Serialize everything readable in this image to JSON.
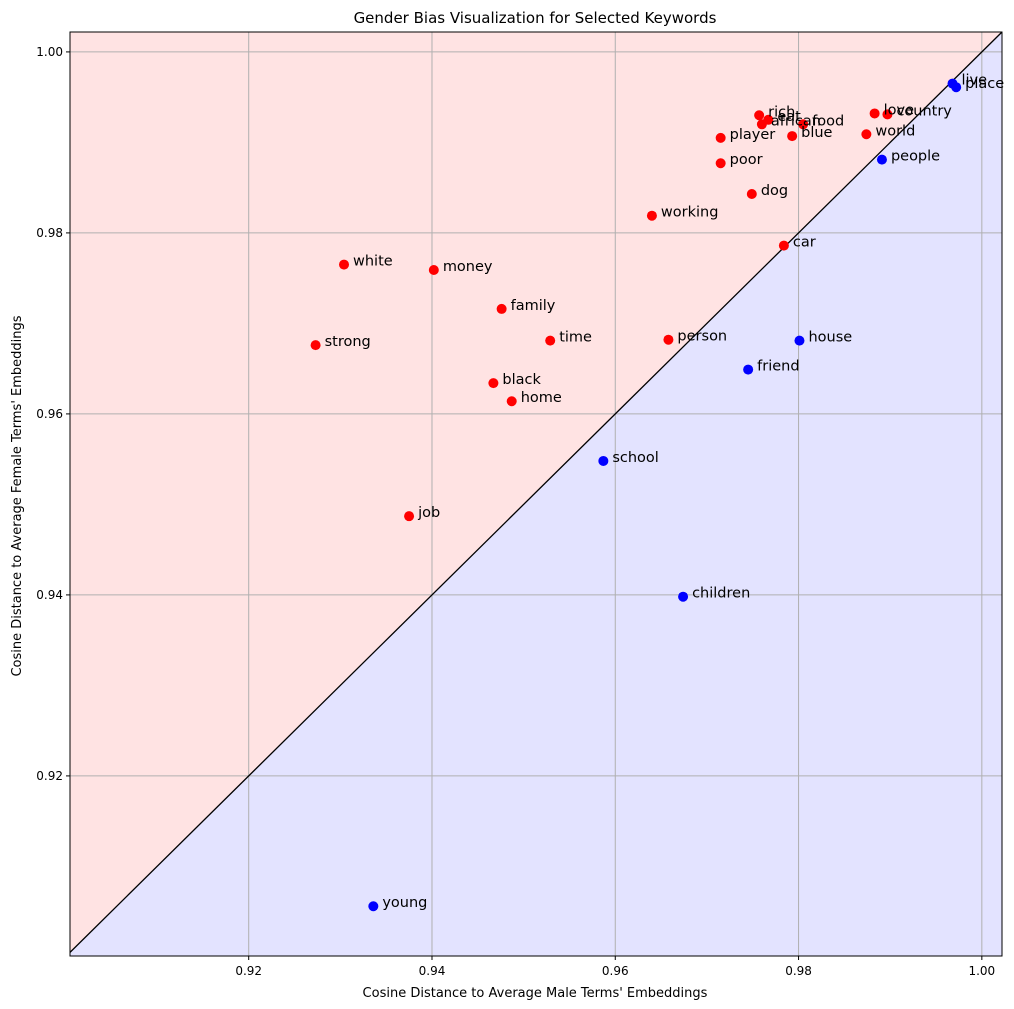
{
  "chart_data": {
    "type": "scatter",
    "title": "Gender Bias Visualization for Selected Keywords",
    "xlabel": "Cosine Distance to Average Male Terms' Embeddings",
    "ylabel": "Cosine Distance to Average Female Terms' Embeddings",
    "xlim": [
      0.9005,
      1.0022
    ],
    "ylim": [
      0.9001,
      1.0022
    ],
    "xticks": [
      0.92,
      0.94,
      0.96,
      0.98,
      1.0
    ],
    "yticks": [
      0.92,
      0.94,
      0.96,
      0.98,
      1.0
    ],
    "tick_labels": [
      "0.92",
      "0.94",
      "0.96",
      "0.98",
      "1.00"
    ],
    "grid": true,
    "diagonal": true,
    "colors": {
      "female_bias_marker": "#ff0000",
      "male_bias_marker": "#0000ff",
      "upper_region_fill": "#ffe3e3",
      "lower_region_fill": "#e3e3ff",
      "grid": "#b0b0b0"
    },
    "points": [
      {
        "label": "rich",
        "x": 0.9757,
        "y": 0.993,
        "color": "red"
      },
      {
        "label": "eat",
        "x": 0.9767,
        "y": 0.9925,
        "color": "red"
      },
      {
        "label": "african",
        "x": 0.976,
        "y": 0.992,
        "color": "red"
      },
      {
        "label": "food",
        "x": 0.9805,
        "y": 0.992,
        "color": "red"
      },
      {
        "label": "blue",
        "x": 0.9793,
        "y": 0.9907,
        "color": "red"
      },
      {
        "label": "player",
        "x": 0.9715,
        "y": 0.9905,
        "color": "red"
      },
      {
        "label": "poor",
        "x": 0.9715,
        "y": 0.9877,
        "color": "red"
      },
      {
        "label": "dog",
        "x": 0.9749,
        "y": 0.9843,
        "color": "red"
      },
      {
        "label": "working",
        "x": 0.964,
        "y": 0.9819,
        "color": "red"
      },
      {
        "label": "car",
        "x": 0.9784,
        "y": 0.9786,
        "color": "red"
      },
      {
        "label": "love",
        "x": 0.9883,
        "y": 0.9932,
        "color": "red"
      },
      {
        "label": "country",
        "x": 0.9897,
        "y": 0.9931,
        "color": "red"
      },
      {
        "label": "world",
        "x": 0.9874,
        "y": 0.9909,
        "color": "red"
      },
      {
        "label": "white",
        "x": 0.9304,
        "y": 0.9765,
        "color": "red"
      },
      {
        "label": "money",
        "x": 0.9402,
        "y": 0.9759,
        "color": "red"
      },
      {
        "label": "family",
        "x": 0.9476,
        "y": 0.9716,
        "color": "red"
      },
      {
        "label": "strong",
        "x": 0.9273,
        "y": 0.9676,
        "color": "red"
      },
      {
        "label": "time",
        "x": 0.9529,
        "y": 0.9681,
        "color": "red"
      },
      {
        "label": "person",
        "x": 0.9658,
        "y": 0.9682,
        "color": "red"
      },
      {
        "label": "black",
        "x": 0.9467,
        "y": 0.9634,
        "color": "red"
      },
      {
        "label": "home",
        "x": 0.9487,
        "y": 0.9614,
        "color": "red"
      },
      {
        "label": "job",
        "x": 0.9375,
        "y": 0.9487,
        "color": "red"
      },
      {
        "label": "live",
        "x": 0.9968,
        "y": 0.9965,
        "color": "blue"
      },
      {
        "label": "place",
        "x": 0.9972,
        "y": 0.9961,
        "color": "blue"
      },
      {
        "label": "people",
        "x": 0.9891,
        "y": 0.9881,
        "color": "blue"
      },
      {
        "label": "house",
        "x": 0.9801,
        "y": 0.9681,
        "color": "blue"
      },
      {
        "label": "friend",
        "x": 0.9745,
        "y": 0.9649,
        "color": "blue"
      },
      {
        "label": "school",
        "x": 0.9587,
        "y": 0.9548,
        "color": "blue"
      },
      {
        "label": "children",
        "x": 0.9674,
        "y": 0.9398,
        "color": "blue"
      },
      {
        "label": "young",
        "x": 0.9336,
        "y": 0.9056,
        "color": "blue"
      }
    ]
  }
}
